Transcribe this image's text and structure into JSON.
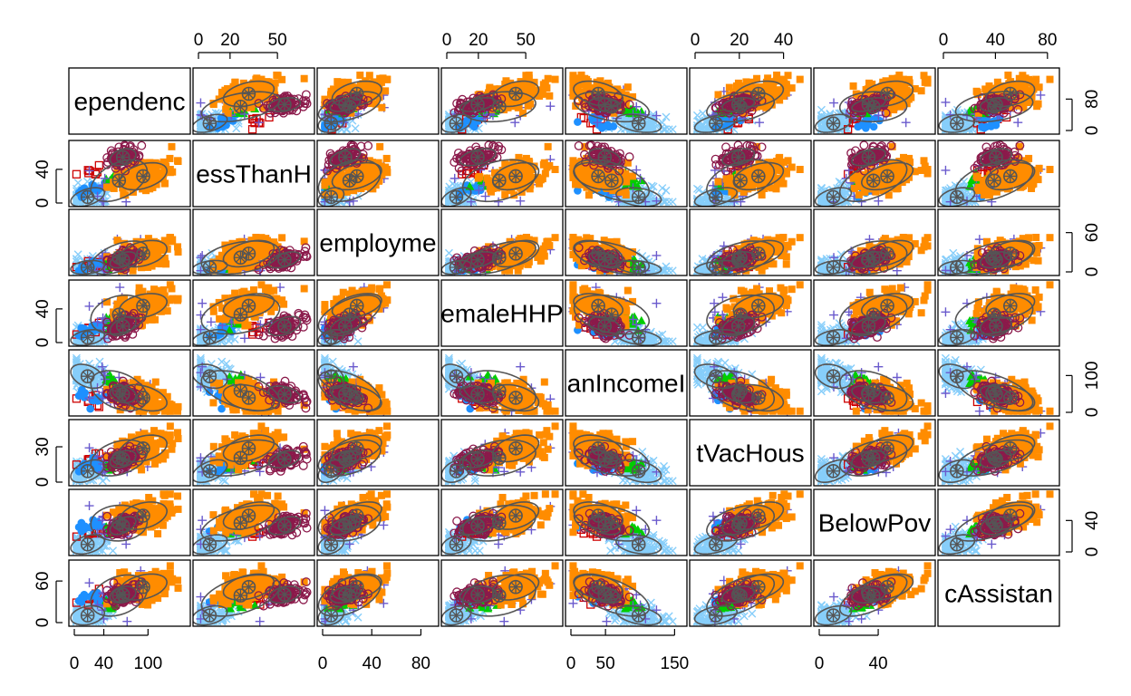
{
  "chart_data": {
    "type": "scatter",
    "title": "",
    "variables": [
      {
        "name": "Dependency",
        "ticks": [
          0,
          40,
          100
        ],
        "range": [
          0,
          150
        ]
      },
      {
        "name": "LessThanHS",
        "ticks": [
          0,
          20,
          50
        ],
        "range": [
          0,
          70
        ]
      },
      {
        "name": "Unemployment",
        "ticks": [
          0,
          40,
          80
        ],
        "range": [
          0,
          90
        ]
      },
      {
        "name": "FemaleHHPct",
        "ticks": [
          0,
          20,
          50
        ],
        "range": [
          0,
          70
        ]
      },
      {
        "name": "MedianIncome",
        "ticks": [
          0,
          50,
          150
        ],
        "range": [
          0,
          160
        ]
      },
      {
        "name": "PctVacHousing",
        "ticks": [
          0,
          20,
          40
        ],
        "range": [
          0,
          50
        ]
      },
      {
        "name": "BelowPoverty",
        "ticks": [
          0,
          40
        ],
        "range": [
          0,
          75
        ]
      },
      {
        "name": "PublicAssistance",
        "ticks": [
          0,
          40,
          80
        ],
        "range": [
          0,
          85
        ]
      }
    ],
    "panel_labels": [
      "ependenc",
      "essThanH",
      "employme",
      "emaleHHP",
      "anIncomeI",
      "tVacHous",
      "BelowPov",
      "cAssistan"
    ],
    "groups": [
      {
        "symbol": "open-square",
        "color": "#CD0000"
      },
      {
        "symbol": "filled-circle",
        "color": "#1E90FF"
      },
      {
        "symbol": "filled-triangle",
        "color": "#00CD00"
      },
      {
        "symbol": "plus",
        "color": "#6A5ACD"
      },
      {
        "symbol": "x",
        "color": "#87CEFA"
      },
      {
        "symbol": "filled-square",
        "color": "#FF8C00"
      },
      {
        "symbol": "open-circle",
        "color": "#8B1A4B"
      }
    ],
    "ellipse_color": "#555555",
    "grid": false,
    "legend": "none",
    "axis_labels": {
      "top": [
        {
          "col": 1,
          "labels": [
            "0",
            "20",
            "50"
          ],
          "values": [
            0,
            20,
            50
          ]
        },
        {
          "col": 3,
          "labels": [
            "0",
            "20",
            "50"
          ],
          "values": [
            0,
            20,
            50
          ]
        },
        {
          "col": 5,
          "labels": [
            "0",
            "20",
            "40"
          ],
          "values": [
            0,
            20,
            40
          ]
        },
        {
          "col": 7,
          "labels": [
            "0",
            "40",
            "80"
          ],
          "values": [
            0,
            40,
            80
          ]
        }
      ],
      "bottom": [
        {
          "col": 0,
          "labels": [
            "0",
            "40",
            "100"
          ],
          "values": [
            0,
            40,
            100
          ]
        },
        {
          "col": 2,
          "labels": [
            "0",
            "40",
            "80"
          ],
          "values": [
            0,
            40,
            80
          ]
        },
        {
          "col": 4,
          "labels": [
            "0",
            "50",
            "150"
          ],
          "values": [
            0,
            50,
            150
          ]
        },
        {
          "col": 6,
          "labels": [
            "0",
            "40"
          ],
          "values": [
            0,
            40
          ]
        }
      ],
      "left": [
        {
          "row": 1,
          "labels": [
            "0",
            "40"
          ],
          "values": [
            0,
            40
          ]
        },
        {
          "row": 3,
          "labels": [
            "0",
            "40"
          ],
          "values": [
            0,
            40
          ]
        },
        {
          "row": 5,
          "labels": [
            "0",
            "30"
          ],
          "values": [
            0,
            30
          ]
        },
        {
          "row": 7,
          "labels": [
            "0",
            "60"
          ],
          "values": [
            0,
            60
          ]
        }
      ],
      "right": [
        {
          "row": 0,
          "labels": [
            "0",
            "80"
          ],
          "values": [
            0,
            80
          ]
        },
        {
          "row": 2,
          "labels": [
            "0",
            "60"
          ],
          "values": [
            0,
            60
          ]
        },
        {
          "row": 4,
          "labels": [
            "0",
            "100"
          ],
          "values": [
            0,
            100
          ]
        },
        {
          "row": 6,
          "labels": [
            "0",
            "40"
          ],
          "values": [
            0,
            40
          ]
        }
      ]
    }
  }
}
